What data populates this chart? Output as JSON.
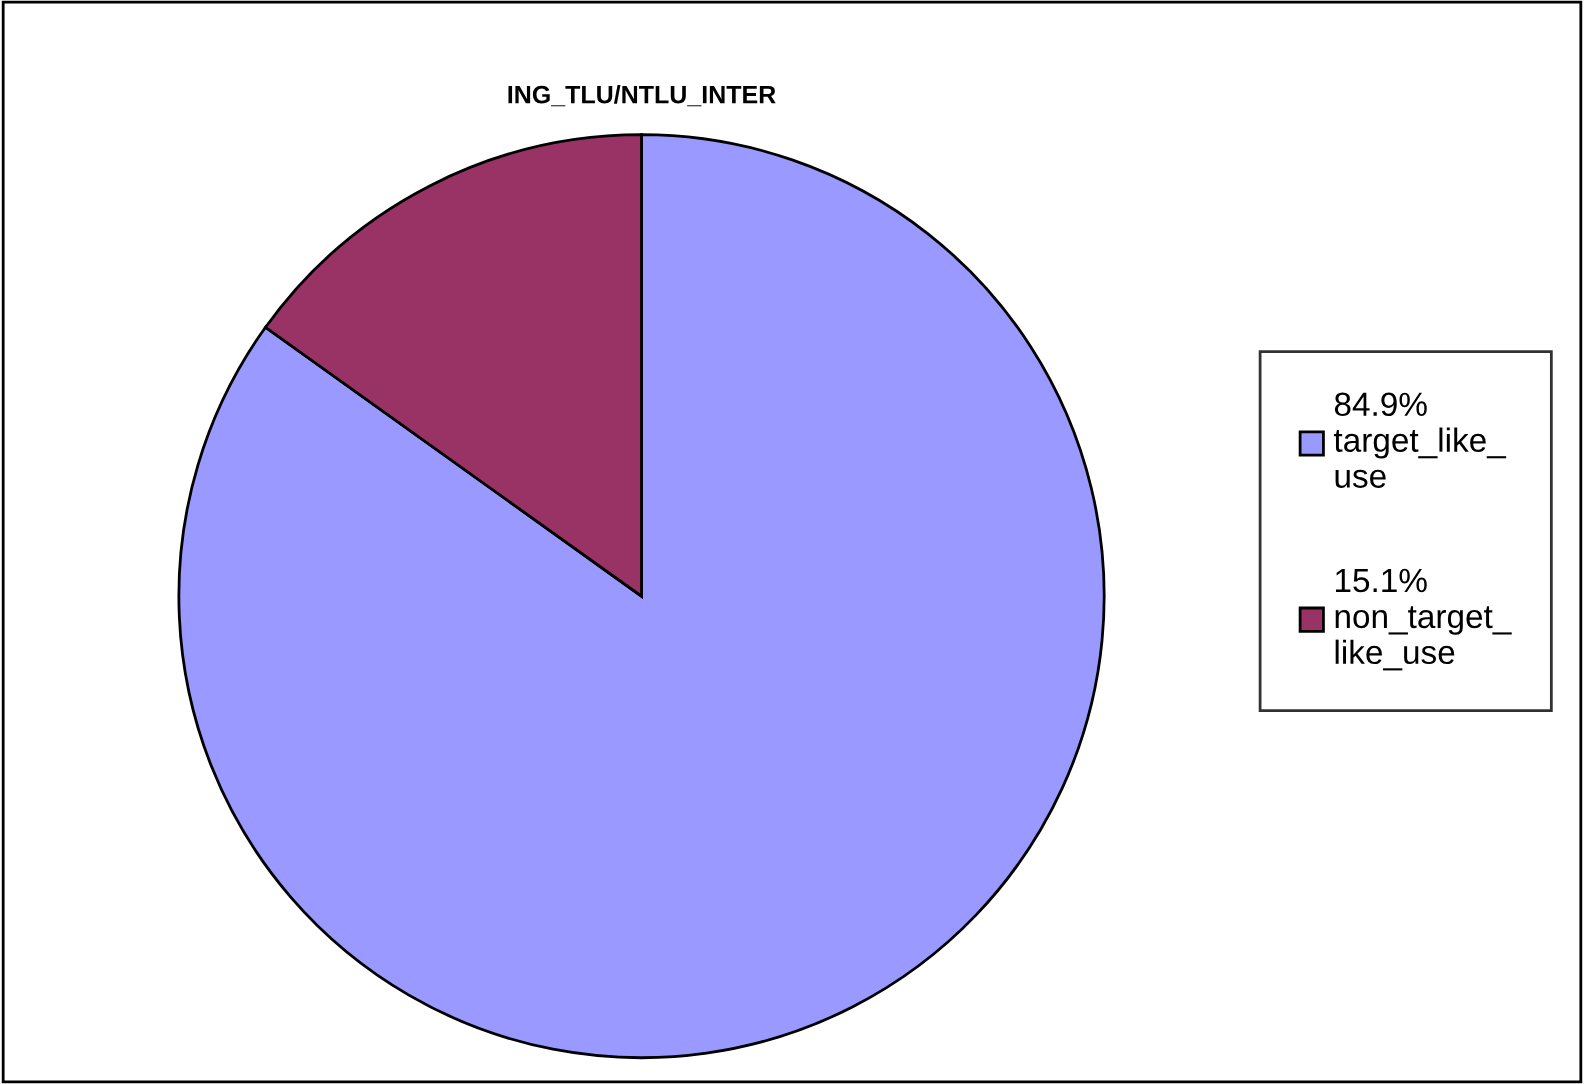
{
  "chart_data": {
    "type": "pie",
    "title": "ING_TLU/NTLU_INTER",
    "categories": [
      "target_like_use",
      "non_target_like_use"
    ],
    "values": [
      84.9,
      15.1
    ],
    "colors": [
      "#9999ff",
      "#993366"
    ],
    "value_labels": [
      "84.9%",
      "15.1%"
    ],
    "legend": "right"
  }
}
